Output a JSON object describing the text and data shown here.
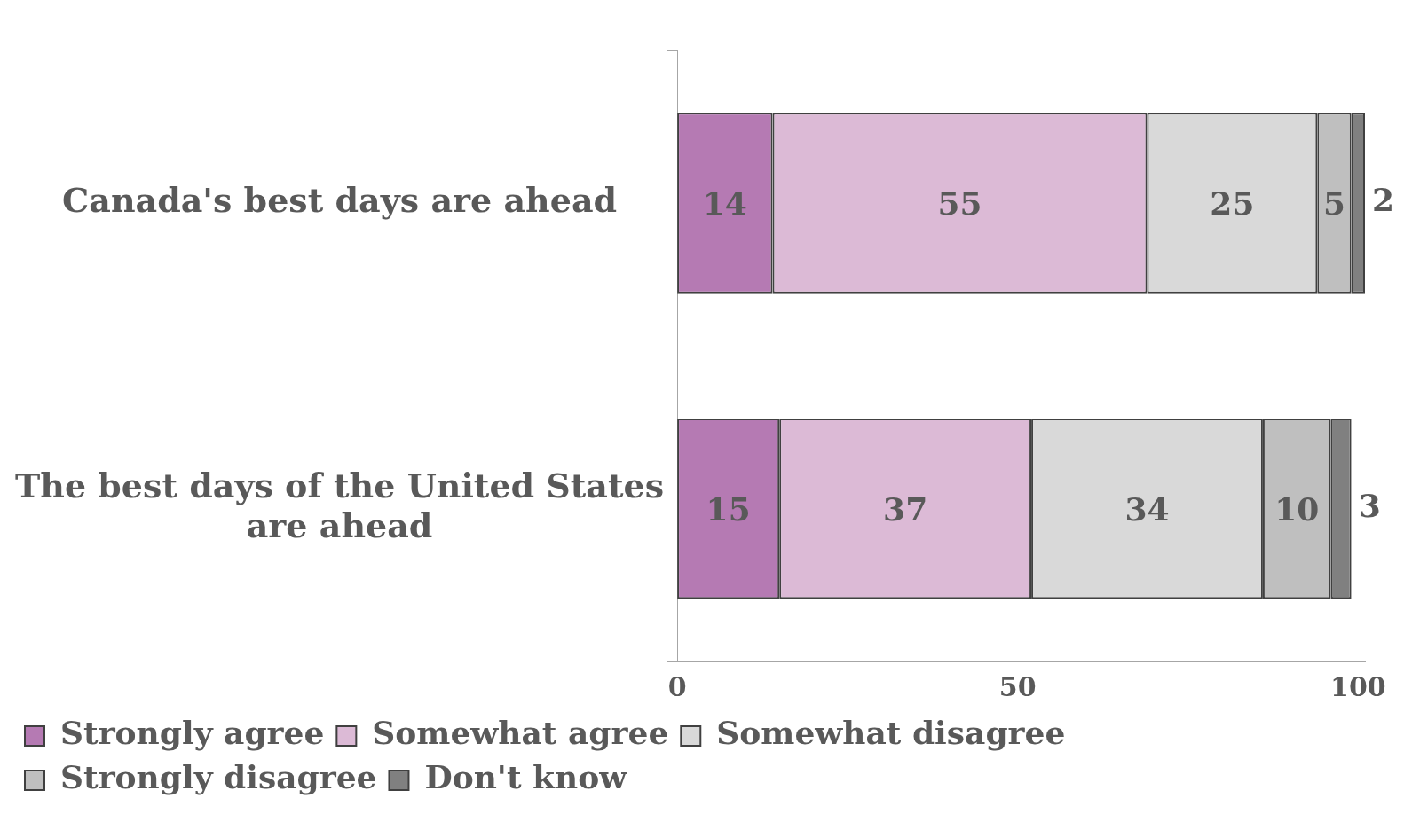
{
  "chart_data": {
    "type": "bar",
    "orientation": "horizontal",
    "stacked": true,
    "categories": [
      "Canada's best days are ahead",
      "The best days of the United States are ahead"
    ],
    "series": [
      {
        "name": "Strongly agree",
        "color": "#b57ab3",
        "values": [
          14,
          15
        ]
      },
      {
        "name": "Somewhat agree",
        "color": "#dcbad6",
        "values": [
          55,
          37
        ]
      },
      {
        "name": "Somewhat disagree",
        "color": "#d9d9d9",
        "values": [
          25,
          34
        ]
      },
      {
        "name": "Strongly disagree",
        "color": "#bfbfbf",
        "values": [
          5,
          10
        ]
      },
      {
        "name": "Don't know",
        "color": "#808080",
        "values": [
          2,
          3
        ]
      }
    ],
    "xlim": [
      0,
      101
    ],
    "xticks": [
      0,
      50,
      100
    ],
    "grid": false,
    "legend": "bottom",
    "data_labels": true
  }
}
